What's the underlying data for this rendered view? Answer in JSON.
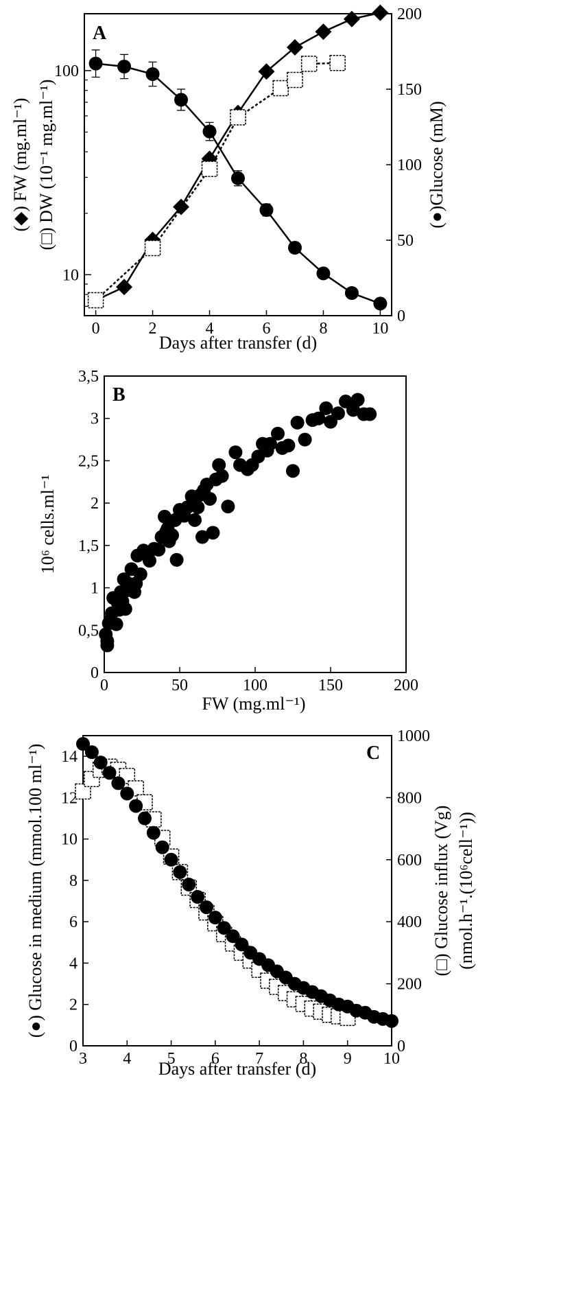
{
  "chart_data": [
    {
      "panel": "A",
      "type": "line",
      "xlabel": "Days after transfer (d)",
      "ylabel_left": "(◆) FW (mg.ml⁻¹)",
      "ylabel_left2": "(□) DW (10⁻¹ mg.ml⁻¹)",
      "ylabel_right": "(●)Glucose (mM)",
      "xlim": [
        -0.4,
        10.4
      ],
      "ylim_left": [
        6.3,
        190
      ],
      "ylog_left": true,
      "ylim_right": [
        0,
        200
      ],
      "xticks": [
        0,
        2,
        4,
        6,
        8,
        10
      ],
      "yticks_left": [
        10,
        100
      ],
      "yticks_right": [
        0,
        50,
        100,
        150,
        200
      ],
      "series": [
        {
          "marker": "diamond",
          "axis": "left",
          "x": [
            0,
            1,
            2,
            3,
            4,
            5,
            6,
            7,
            8,
            9,
            10
          ],
          "y": [
            7.5,
            8.7,
            14.8,
            21.5,
            37,
            62,
            99,
            130,
            155,
            179,
            192
          ]
        },
        {
          "marker": "square",
          "axis": "left",
          "x": [
            0,
            2,
            4,
            5,
            6.5,
            7,
            7.5,
            8.5
          ],
          "y": [
            7.5,
            13.5,
            33,
            59,
            82,
            90,
            108,
            109
          ]
        },
        {
          "marker": "circle",
          "axis": "right",
          "error_bars": true,
          "x": [
            0,
            1,
            2,
            3,
            4,
            5,
            6,
            7,
            8,
            9,
            10
          ],
          "y": [
            167,
            165,
            160,
            143,
            122,
            91,
            70,
            45,
            28,
            15,
            8
          ],
          "err": [
            9,
            8,
            8,
            7,
            6,
            5,
            4,
            3,
            2,
            2,
            2
          ]
        }
      ]
    },
    {
      "panel": "B",
      "type": "scatter",
      "xlabel": "FW (mg.ml⁻¹)",
      "ylabel": "10⁶ cells.ml⁻¹",
      "xlim": [
        0,
        200
      ],
      "ylim": [
        0,
        3.5
      ],
      "xticks": [
        0,
        50,
        100,
        150,
        200
      ],
      "yticks": [
        0,
        0.5,
        1,
        1.5,
        2,
        2.5,
        3,
        3.5
      ],
      "yticklabels": [
        "0",
        "0,5",
        "1",
        "1,5",
        "2",
        "2,5",
        "3",
        "3,5"
      ],
      "x": [
        1,
        2,
        2,
        3,
        4,
        5,
        6,
        8,
        9,
        10,
        11,
        12,
        13,
        14,
        15,
        16,
        18,
        20,
        21,
        22,
        24,
        26,
        30,
        33,
        36,
        38,
        40,
        41,
        42,
        43,
        45,
        47,
        48,
        50,
        53,
        55,
        58,
        60,
        62,
        64,
        65,
        66,
        68,
        70,
        72,
        74,
        76,
        78,
        82,
        87,
        90,
        95,
        98,
        102,
        105,
        108,
        110,
        115,
        118,
        122,
        125,
        128,
        133,
        138,
        142,
        147,
        150,
        155,
        160,
        165,
        168,
        172,
        176
      ],
      "y": [
        0.45,
        0.37,
        0.32,
        0.58,
        0.62,
        0.7,
        0.88,
        0.57,
        0.82,
        0.74,
        0.95,
        0.84,
        1.1,
        0.75,
        0.97,
        1.05,
        1.22,
        0.95,
        1.05,
        1.38,
        1.16,
        1.44,
        1.32,
        1.46,
        1.45,
        1.6,
        1.84,
        1.66,
        1.7,
        1.55,
        1.62,
        1.8,
        1.33,
        1.92,
        1.85,
        1.95,
        2.08,
        1.8,
        1.95,
        2.1,
        1.6,
        2.15,
        2.22,
        2.05,
        1.65,
        2.28,
        2.45,
        2.32,
        1.96,
        2.6,
        2.45,
        2.4,
        2.45,
        2.55,
        2.7,
        2.62,
        2.7,
        2.82,
        2.65,
        2.68,
        2.38,
        2.95,
        2.75,
        2.98,
        3.0,
        3.12,
        2.96,
        3.06,
        3.2,
        3.1,
        3.22,
        3.05,
        3.05
      ]
    },
    {
      "panel": "C",
      "type": "scatter",
      "xlabel": "Days after transfer (d)",
      "ylabel_left": "(●) Glucose in medium (mmol.100 ml⁻¹)",
      "ylabel_right": "(□) Glucose influx (Vg)",
      "ylabel_right2": "(nmol.h⁻¹.(10⁶cell⁻¹))",
      "xlim": [
        3,
        10
      ],
      "ylim_left": [
        0,
        15
      ],
      "ylim_right": [
        0,
        1000
      ],
      "xticks": [
        3,
        4,
        5,
        6,
        7,
        8,
        9,
        10
      ],
      "yticks_left": [
        0,
        2,
        4,
        6,
        8,
        10,
        12,
        14
      ],
      "yticks_right": [
        0,
        200,
        400,
        600,
        800,
        1000
      ],
      "series": [
        {
          "marker": "circle",
          "axis": "left",
          "x": [
            3.0,
            3.2,
            3.4,
            3.6,
            3.8,
            4.0,
            4.2,
            4.4,
            4.6,
            4.8,
            5.0,
            5.2,
            5.4,
            5.6,
            5.8,
            6.0,
            6.2,
            6.4,
            6.6,
            6.8,
            7.0,
            7.2,
            7.4,
            7.6,
            7.8,
            8.0,
            8.2,
            8.4,
            8.6,
            8.8,
            9.0,
            9.2,
            9.4,
            9.6,
            9.8,
            10.0
          ],
          "y": [
            14.6,
            14.2,
            13.7,
            13.2,
            12.7,
            12.2,
            11.6,
            11.0,
            10.3,
            9.6,
            9.0,
            8.4,
            7.8,
            7.2,
            6.7,
            6.2,
            5.7,
            5.3,
            4.9,
            4.5,
            4.2,
            3.9,
            3.6,
            3.3,
            3.0,
            2.8,
            2.6,
            2.4,
            2.2,
            2.0,
            1.9,
            1.7,
            1.6,
            1.4,
            1.3,
            1.2
          ]
        },
        {
          "marker": "square",
          "axis": "right",
          "x": [
            3.0,
            3.2,
            3.4,
            3.6,
            3.8,
            4.0,
            4.2,
            4.4,
            4.6,
            4.8,
            5.0,
            5.2,
            5.4,
            5.6,
            5.8,
            6.0,
            6.2,
            6.4,
            6.6,
            6.8,
            7.0,
            7.2,
            7.4,
            7.6,
            7.8,
            8.0,
            8.2,
            8.4,
            8.6,
            8.8,
            9.0
          ],
          "y": [
            820,
            860,
            890,
            900,
            890,
            870,
            830,
            785,
            730,
            670,
            610,
            560,
            510,
            470,
            430,
            395,
            360,
            330,
            300,
            275,
            245,
            210,
            190,
            170,
            150,
            135,
            120,
            110,
            100,
            95,
            90
          ]
        }
      ]
    }
  ]
}
